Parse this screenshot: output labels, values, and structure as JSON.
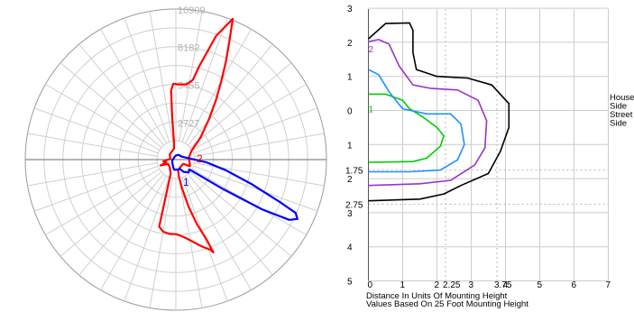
{
  "chart_data": [
    {
      "type": "polar-line",
      "grid": true,
      "radial_tick_labels": [
        "2727",
        "5455",
        "8182",
        "10909"
      ],
      "radial_tick_values": [
        2727,
        5455,
        8182,
        10909
      ],
      "r_max": 10909,
      "angle_convention": "degrees from straight down, positive toward the right side",
      "series": [
        {
          "name": "2",
          "color": "#ff0000",
          "points": [
            [
              0,
              5400
            ],
            [
              3,
              5500
            ],
            [
              6,
              5650
            ],
            [
              9,
              5850
            ],
            [
              12,
              6100
            ],
            [
              15,
              6400
            ],
            [
              18,
              6700
            ],
            [
              21,
              7000
            ],
            [
              22,
              7250
            ],
            [
              21,
              6200
            ],
            [
              18,
              4900
            ],
            [
              15,
              3500
            ],
            [
              12,
              2100
            ],
            [
              10,
              1200
            ],
            [
              12,
              800
            ],
            [
              25,
              660
            ],
            [
              45,
              600
            ],
            [
              60,
              620
            ],
            [
              65,
              1130
            ],
            [
              100,
              960
            ],
            [
              120,
              1330
            ],
            [
              132,
              2420
            ],
            [
              141,
              3850
            ],
            [
              146,
              5200
            ],
            [
              150,
              6600
            ],
            [
              153,
              8000
            ],
            [
              156,
              9600
            ],
            [
              158,
              11000
            ],
            [
              162,
              9420
            ],
            [
              166,
              6940
            ],
            [
              168,
              5900
            ],
            [
              172,
              5500
            ],
            [
              178,
              5450
            ],
            [
              182,
              5500
            ],
            [
              184,
              5000
            ],
            [
              185,
              3000
            ],
            [
              186,
              1300
            ],
            [
              190,
              800
            ],
            [
              230,
              580
            ],
            [
              262,
              400
            ],
            [
              278,
              910
            ],
            [
              285,
              730
            ],
            [
              291,
              1180
            ],
            [
              298,
              640
            ],
            [
              320,
              700
            ],
            [
              340,
              1080
            ],
            [
              346,
              5000
            ],
            [
              350,
              5300
            ],
            [
              355,
              5400
            ],
            [
              360,
              5400
            ]
          ]
        },
        {
          "name": "1",
          "color": "#0000ff",
          "points": [
            [
              0,
              720
            ],
            [
              12,
              750
            ],
            [
              22,
              700
            ],
            [
              32,
              1050
            ],
            [
              45,
              1300
            ],
            [
              54,
              1200
            ],
            [
              58,
              4000
            ],
            [
              60,
              7200
            ],
            [
              62,
              9300
            ],
            [
              64,
              9800
            ],
            [
              66,
              9500
            ],
            [
              68,
              8000
            ],
            [
              72,
              5800
            ],
            [
              78,
              3700
            ],
            [
              85,
              2200
            ],
            [
              95,
              1000
            ],
            [
              105,
              650
            ],
            [
              120,
              460
            ],
            [
              150,
              400
            ],
            [
              180,
              300
            ],
            [
              210,
              210
            ],
            [
              240,
              180
            ],
            [
              270,
              240
            ],
            [
              300,
              310
            ],
            [
              330,
              450
            ],
            [
              345,
              650
            ],
            [
              352,
              750
            ],
            [
              360,
              720
            ]
          ]
        }
      ]
    },
    {
      "type": "contour",
      "grid": true,
      "x_axis": {
        "range": [
          0,
          7
        ],
        "tick_labels": [
          "0",
          "1",
          "2",
          "2.25",
          "3",
          "3.75",
          "4",
          "5",
          "6",
          "7"
        ],
        "tick_values": [
          0,
          1,
          2,
          2.25,
          3,
          3.75,
          4,
          5,
          6,
          7
        ],
        "dashed_at": [
          2.25,
          3.75
        ],
        "label_lines": [
          "Distance In Units Of Mounting Height",
          "Values Based On 25 Foot Mounting Height"
        ]
      },
      "y_axis": {
        "range": [
          -3,
          5
        ],
        "tick_labels": [
          "3",
          "2",
          "1",
          "0",
          "1",
          "1.75",
          "2",
          "2.75",
          "3",
          "4",
          "5"
        ],
        "tick_values": [
          -3,
          -2,
          -1,
          0,
          1,
          1.75,
          2,
          2.75,
          3,
          4,
          5
        ],
        "dashed_at": [
          1.75,
          2.75
        ]
      },
      "side_labels": [
        "House",
        "Side",
        "Street",
        "Side"
      ],
      "series": [
        {
          "name": "1",
          "color": "#00cc00",
          "points": [
            [
              0,
              -0.48
            ],
            [
              0.5,
              -0.48
            ],
            [
              1.0,
              -0.3
            ],
            [
              1.2,
              -0.05
            ],
            [
              1.6,
              0.2
            ],
            [
              2.0,
              0.5
            ],
            [
              2.2,
              0.75
            ],
            [
              2.1,
              1.05
            ],
            [
              1.7,
              1.4
            ],
            [
              1.3,
              1.5
            ],
            [
              0,
              1.52
            ]
          ]
        },
        {
          "name": "",
          "color": "#1e90ff",
          "points": [
            [
              0,
              -1.2
            ],
            [
              0.3,
              -1.05
            ],
            [
              0.6,
              -0.55
            ],
            [
              1.0,
              -0.05
            ],
            [
              1.7,
              0.1
            ],
            [
              2.4,
              0.1
            ],
            [
              2.7,
              0.4
            ],
            [
              2.8,
              1.0
            ],
            [
              2.6,
              1.45
            ],
            [
              2.1,
              1.75
            ],
            [
              1.2,
              1.8
            ],
            [
              0,
              1.8
            ]
          ]
        },
        {
          "name": "2",
          "color": "#9932cc",
          "points": [
            [
              0,
              -2.02
            ],
            [
              0.3,
              -2.08
            ],
            [
              0.6,
              -1.95
            ],
            [
              0.9,
              -1.3
            ],
            [
              1.3,
              -0.75
            ],
            [
              1.8,
              -0.65
            ],
            [
              2.6,
              -0.6
            ],
            [
              3.2,
              -0.3
            ],
            [
              3.45,
              0.3
            ],
            [
              3.4,
              1.1
            ],
            [
              3.1,
              1.6
            ],
            [
              2.4,
              2.05
            ],
            [
              1.5,
              2.15
            ],
            [
              0,
              2.2
            ]
          ]
        },
        {
          "name": "",
          "color": "#000000",
          "points": [
            [
              0,
              -2.1
            ],
            [
              0.5,
              -2.55
            ],
            [
              1.2,
              -2.57
            ],
            [
              1.3,
              -2.35
            ],
            [
              1.3,
              -1.7
            ],
            [
              1.4,
              -1.2
            ],
            [
              2.0,
              -1.0
            ],
            [
              2.9,
              -0.95
            ],
            [
              3.6,
              -0.75
            ],
            [
              4.1,
              -0.2
            ],
            [
              4.1,
              0.5
            ],
            [
              3.85,
              1.2
            ],
            [
              3.5,
              1.85
            ],
            [
              2.7,
              2.2
            ],
            [
              2.2,
              2.45
            ],
            [
              1.5,
              2.6
            ],
            [
              0,
              2.65
            ]
          ]
        }
      ]
    }
  ]
}
